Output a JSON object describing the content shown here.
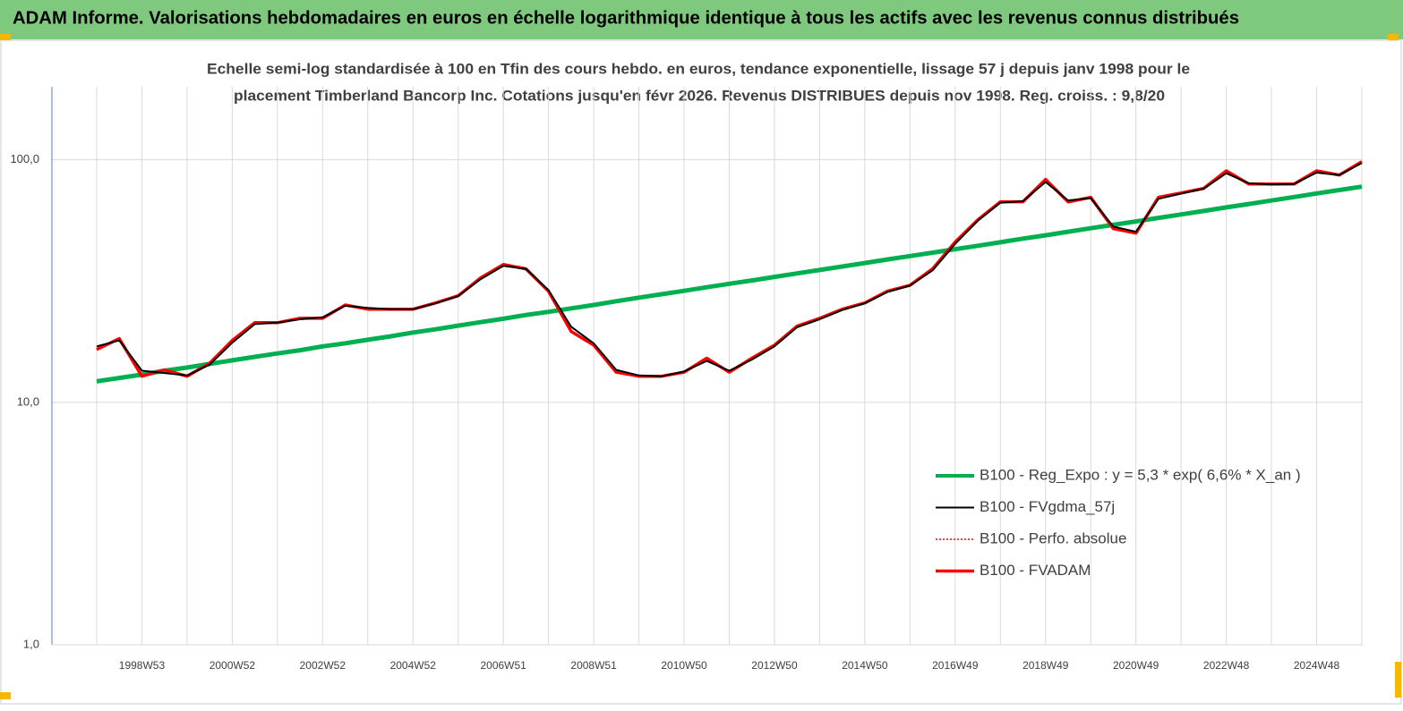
{
  "chart_data": {
    "type": "line",
    "title": "ADAM Informe. Valorisations hebdomadaires en euros en échelle logarithmique identique à tous les actifs avec les revenus connus distribués",
    "subtitle": [
      "Echelle semi-log standardisée à 100 en Tfin des cours hebdo. en euros, tendance exponentielle, lissage 57 j depuis janv 1998 pour le",
      "placement Timberland Bancorp Inc. Cotations jusqu'en févr 2026. Revenus DISTRIBUES depuis nov 1998. Reg. croiss. : 9,8/20"
    ],
    "categories": [
      null,
      null,
      "1998W53",
      null,
      null,
      null,
      "2000W52",
      null,
      null,
      null,
      "2002W52",
      null,
      null,
      null,
      "2004W52",
      null,
      null,
      null,
      "2006W51",
      null,
      null,
      null,
      "2008W51",
      null,
      null,
      null,
      "2010W50",
      null,
      null,
      null,
      "2012W50",
      null,
      null,
      null,
      "2014W50",
      null,
      null,
      null,
      "2016W49",
      null,
      null,
      null,
      "2018W49",
      null,
      null,
      null,
      "2020W49",
      null,
      null,
      null,
      "2022W48",
      null,
      null,
      null,
      "2024W48",
      null,
      null
    ],
    "log_scale": true,
    "ylim": [
      1,
      200
    ],
    "yticks": [
      {
        "value": 1,
        "label": "1,0"
      },
      {
        "value": 10,
        "label": "10,0"
      },
      {
        "value": 100,
        "label": "100,0"
      }
    ],
    "grid": true,
    "legend": "bottom-right",
    "series": [
      {
        "name": "B100 - Reg_Expo : y = 5,3 * exp( 6,6% *  X_an )",
        "color": "#00b050",
        "style": "solid",
        "values": [
          12.2,
          12.6,
          13.0,
          13.5,
          13.9,
          14.4,
          14.9,
          15.4,
          15.9,
          16.4,
          17.0,
          17.5,
          18.1,
          18.7,
          19.4,
          20.0,
          20.7,
          21.4,
          22.1,
          22.9,
          23.6,
          24.4,
          25.2,
          26.1,
          27.0,
          27.9,
          28.8,
          29.8,
          30.8,
          31.8,
          32.9,
          34.0,
          35.1,
          36.3,
          37.5,
          38.8,
          40.1,
          41.4,
          42.8,
          44.2,
          45.7,
          47.3,
          48.8,
          50.5,
          52.2,
          53.9,
          55.7,
          57.6,
          59.5,
          61.5,
          63.6,
          65.7,
          67.9,
          70.2,
          72.6,
          75.0,
          77.5
        ]
      },
      {
        "name": "B100 - FVgdma_57j",
        "color": "#000000",
        "style": "solid",
        "values": [
          17,
          18,
          13.5,
          13.2,
          12.9,
          14.3,
          17.6,
          21,
          21.3,
          22,
          22.4,
          25,
          24.5,
          24.2,
          24.2,
          25.6,
          27.4,
          32.2,
          36.5,
          35.5,
          29,
          20.5,
          17.5,
          13.6,
          12.9,
          12.8,
          13.4,
          14.8,
          13.5,
          15,
          17,
          20.4,
          22,
          24,
          25.6,
          28.5,
          30.3,
          35,
          45,
          56,
          66.5,
          67.5,
          81,
          68,
          69.5,
          53,
          50.5,
          69,
          72.5,
          76,
          88,
          80,
          79,
          79.5,
          88.5,
          86.5,
          97
        ]
      },
      {
        "name": "B100 - Perfo. absolue",
        "color": "#ff0000",
        "style": "dotted",
        "values": [
          16.5,
          18.3,
          12.8,
          13.6,
          12.8,
          14.5,
          18,
          21.3,
          21.3,
          22.2,
          22.2,
          25.2,
          24.2,
          24.2,
          24.2,
          25.7,
          27.5,
          32.6,
          37,
          35.5,
          28.7,
          19.6,
          17.2,
          13.3,
          12.8,
          12.8,
          13.3,
          15.2,
          13.3,
          15.2,
          17.2,
          20.6,
          22.2,
          24.2,
          25.7,
          28.7,
          30.4,
          35.5,
          45.8,
          56.6,
          67.1,
          67.1,
          83,
          67,
          70,
          52,
          49.8,
          70,
          73,
          76.2,
          90,
          79.5,
          79.5,
          79.5,
          90,
          86.5,
          98.3
        ]
      },
      {
        "name": "B100 - FVADAM",
        "color": "#ff0000",
        "style": "solid",
        "values": [
          16.5,
          18.3,
          12.8,
          13.6,
          12.8,
          14.5,
          18,
          21.3,
          21.3,
          22.2,
          22.2,
          25.2,
          24.2,
          24.2,
          24.2,
          25.7,
          27.5,
          32.6,
          37,
          35.5,
          28.7,
          19.6,
          17.2,
          13.3,
          12.8,
          12.8,
          13.3,
          15.2,
          13.3,
          15.2,
          17.2,
          20.6,
          22.2,
          24.2,
          25.7,
          28.7,
          30.4,
          35.5,
          45.8,
          56.6,
          67.1,
          67.1,
          83,
          67,
          70,
          52,
          49.8,
          70,
          73,
          76.2,
          90,
          79.5,
          79.5,
          79.5,
          90,
          86.5,
          98.3
        ]
      }
    ]
  }
}
